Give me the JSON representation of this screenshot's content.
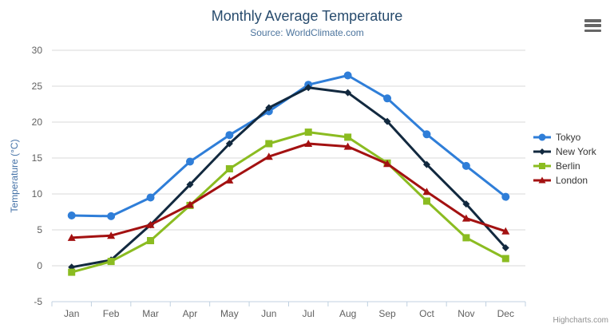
{
  "header": {
    "title": "Monthly Average Temperature",
    "subtitle": "Source: WorldClimate.com"
  },
  "chart_data": {
    "type": "line",
    "title": "Monthly Average Temperature",
    "subtitle": "Source: WorldClimate.com",
    "categories": [
      "Jan",
      "Feb",
      "Mar",
      "Apr",
      "May",
      "Jun",
      "Jul",
      "Aug",
      "Sep",
      "Oct",
      "Nov",
      "Dec"
    ],
    "series": [
      {
        "name": "Tokyo",
        "color": "#2f7ed8",
        "marker": "circle",
        "values": [
          7.0,
          6.9,
          9.5,
          14.5,
          18.2,
          21.5,
          25.2,
          26.5,
          23.3,
          18.3,
          13.9,
          9.6
        ]
      },
      {
        "name": "New York",
        "color": "#12293f",
        "marker": "diamond",
        "values": [
          -0.2,
          0.8,
          5.7,
          11.3,
          17.0,
          22.0,
          24.8,
          24.1,
          20.1,
          14.1,
          8.6,
          2.5
        ]
      },
      {
        "name": "Berlin",
        "color": "#8bbc21",
        "marker": "square",
        "values": [
          -0.9,
          0.6,
          3.5,
          8.4,
          13.5,
          17.0,
          18.6,
          17.9,
          14.3,
          9.0,
          3.9,
          1.0
        ]
      },
      {
        "name": "London",
        "color": "#a31111",
        "marker": "triangle",
        "values": [
          3.9,
          4.2,
          5.7,
          8.5,
          11.9,
          15.2,
          17.0,
          16.6,
          14.2,
          10.3,
          6.6,
          4.8
        ]
      }
    ],
    "xlabel": "",
    "ylabel": "Temperature (°C)",
    "ylim": [
      -5,
      30
    ],
    "ytick_step": 5,
    "grid": true,
    "legend_position": "right"
  },
  "theme": {
    "title_color": "#274b6d",
    "subtitle_color": "#4d759e",
    "grid_color": "#d8d8d8",
    "axis_line_color": "#c0d0e0",
    "tick_label_color": "#606060",
    "axis_title_color": "#4572a7",
    "legend_text_color": "#333333"
  },
  "export_menu": {
    "icon": "hamburger-icon"
  },
  "credits": {
    "label": "Highcharts.com"
  }
}
